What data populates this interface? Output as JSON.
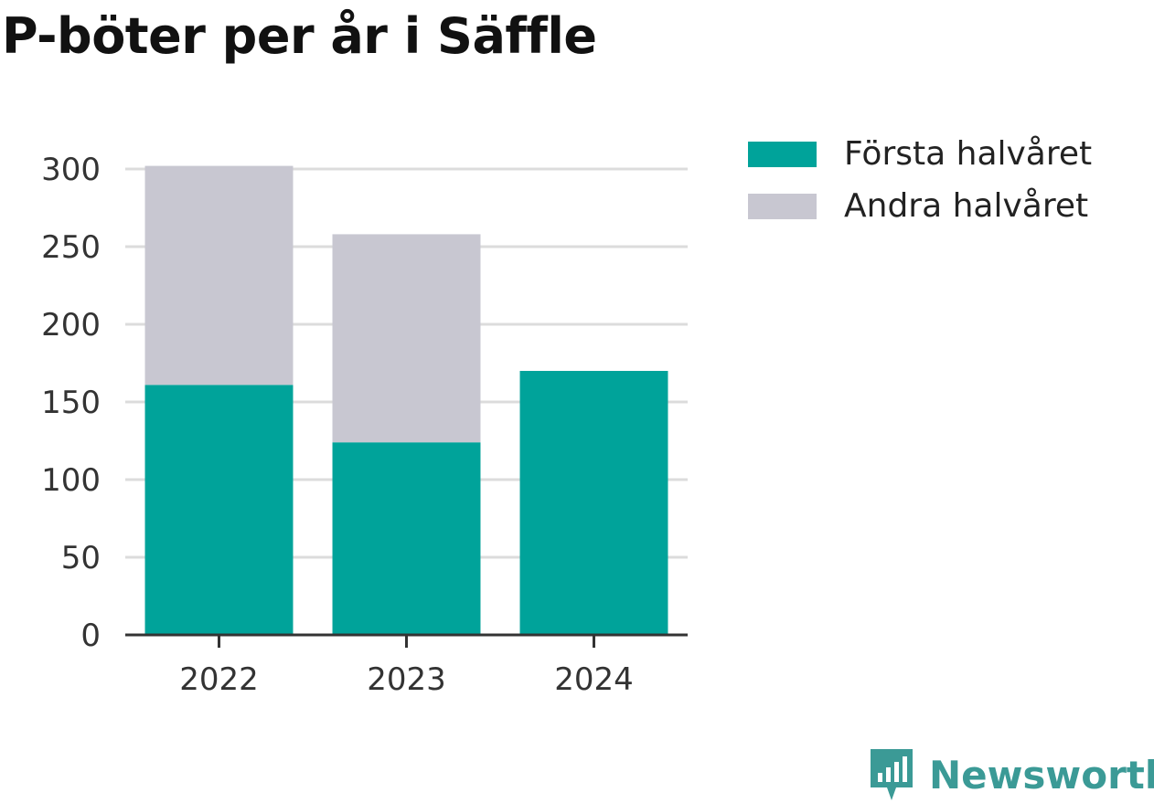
{
  "page": {
    "title": "P-böter per år i Säffle"
  },
  "chart_data": {
    "type": "bar",
    "stacked": true,
    "title": "P-böter per år i Säffle",
    "categories": [
      "2022",
      "2023",
      "2024"
    ],
    "series": [
      {
        "name": "Första halvåret",
        "values": [
          161,
          124,
          170
        ],
        "color": "#00a39a"
      },
      {
        "name": "Andra halvåret",
        "values": [
          141,
          134,
          0
        ],
        "color": "#c8c7d1"
      }
    ],
    "ylim": [
      0,
      300
    ],
    "yticks": [
      0,
      50,
      100,
      150,
      200,
      250,
      300
    ],
    "grid": true,
    "legend_position": "top-right"
  },
  "brand": {
    "name": "Newsworthy",
    "color": "#3b9a96",
    "icon": "newsworthy-logo-icon"
  }
}
